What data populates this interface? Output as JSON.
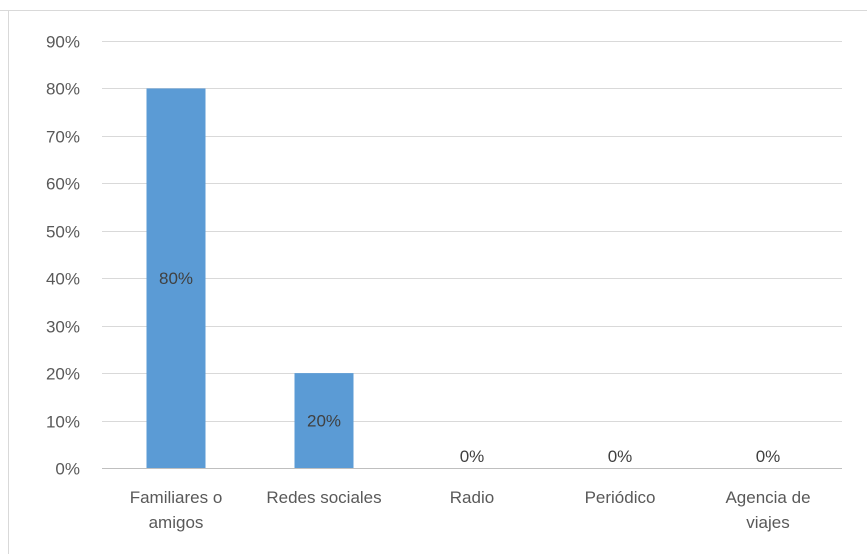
{
  "chart_data": {
    "type": "bar",
    "categories": [
      [
        "Familiares o",
        "amigos"
      ],
      [
        "Redes sociales"
      ],
      [
        "Radio"
      ],
      [
        "Periódico"
      ],
      [
        "Agencia de",
        "viajes"
      ]
    ],
    "values": [
      80,
      20,
      0,
      0,
      0
    ],
    "data_labels": [
      "80%",
      "20%",
      "0%",
      "0%",
      "0%"
    ],
    "ylim": [
      0,
      90
    ],
    "y_ticks": [
      0,
      10,
      20,
      30,
      40,
      50,
      60,
      70,
      80,
      90
    ],
    "y_tick_labels": [
      "0%",
      "10%",
      "20%",
      "30%",
      "40%",
      "50%",
      "60%",
      "70%",
      "80%",
      "90%"
    ],
    "grid": true,
    "legend": "none",
    "bar_color": "#5b9bd5"
  }
}
